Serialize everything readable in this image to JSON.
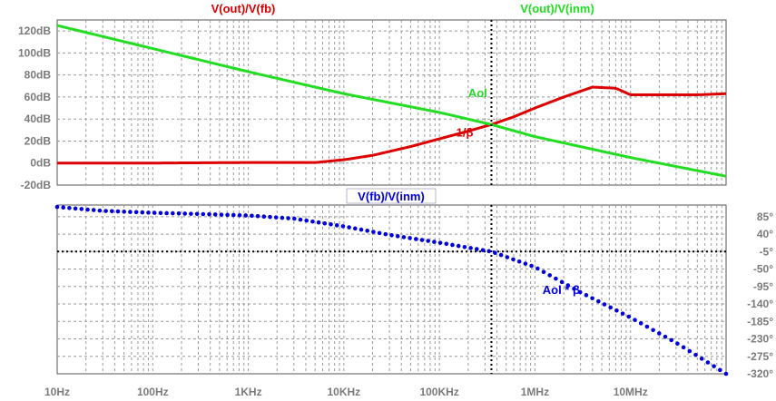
{
  "colors": {
    "aol": "#22dd22",
    "inv_beta": "#dd0000",
    "loop_gain": "#0000dd",
    "cursor": "#000000",
    "grid": "#9a9a9a",
    "tick_text": "#7a7a7a"
  },
  "chart_data": [
    {
      "type": "line",
      "title_left": "V(out)/V(fb)",
      "title_right": "V(out)/V(inm)",
      "x_scale": "log",
      "x_range_hz": [
        10,
        100000000
      ],
      "y_range_db": [
        -20,
        130
      ],
      "y_ticks": [
        {
          "v": 120,
          "label": "120dB"
        },
        {
          "v": 100,
          "label": "100dB"
        },
        {
          "v": 80,
          "label": "80dB"
        },
        {
          "v": 60,
          "label": "60dB"
        },
        {
          "v": 40,
          "label": "40dB"
        },
        {
          "v": 20,
          "label": "20dB"
        },
        {
          "v": 0,
          "label": "0dB"
        },
        {
          "v": -20,
          "label": "-20dB"
        }
      ],
      "grid": true,
      "cursor_hz": 350000,
      "series": [
        {
          "name": "V(out)/V(fb)",
          "color_key": "inv_beta",
          "annotation": "1/β",
          "annotation_at": {
            "x": 150000,
            "y": 24
          },
          "points": [
            [
              10,
              0
            ],
            [
              100,
              0
            ],
            [
              1000,
              0.5
            ],
            [
              5000,
              0.5
            ],
            [
              10000,
              3
            ],
            [
              20000,
              7
            ],
            [
              50000,
              15
            ],
            [
              100000,
              22
            ],
            [
              200000,
              29
            ],
            [
              350000,
              35
            ],
            [
              600000,
              42
            ],
            [
              1000000,
              50
            ],
            [
              2000000,
              60
            ],
            [
              4000000,
              69
            ],
            [
              7000000,
              68
            ],
            [
              10000000,
              62
            ],
            [
              20000000,
              62
            ],
            [
              50000000,
              62
            ],
            [
              100000000,
              63
            ]
          ]
        },
        {
          "name": "V(out)/V(inm)",
          "color_key": "aol",
          "annotation": "Aol",
          "annotation_at": {
            "x": 200000,
            "y": 60
          },
          "points": [
            [
              10,
              125
            ],
            [
              100,
              104
            ],
            [
              1000,
              83
            ],
            [
              10000,
              63
            ],
            [
              100000,
              46
            ],
            [
              350000,
              35
            ],
            [
              1000000,
              24
            ],
            [
              10000000,
              5
            ],
            [
              100000000,
              -12
            ]
          ]
        }
      ]
    },
    {
      "type": "scatter",
      "title": "V(fb)/V(inm)",
      "x_scale": "log",
      "x_range_hz": [
        10,
        100000000
      ],
      "y_range_deg": [
        -320,
        115
      ],
      "y_ticks": [
        {
          "v": 85,
          "label": "85°"
        },
        {
          "v": 40,
          "label": "40°"
        },
        {
          "v": -5,
          "label": "-5°"
        },
        {
          "v": -50,
          "label": "-50°"
        },
        {
          "v": -95,
          "label": "-95°"
        },
        {
          "v": -140,
          "label": "-140°"
        },
        {
          "v": -185,
          "label": "-185°"
        },
        {
          "v": -230,
          "label": "-230°"
        },
        {
          "v": -275,
          "label": "-275°"
        },
        {
          "v": -320,
          "label": "-320°"
        }
      ],
      "grid": true,
      "cursor_hz": 350000,
      "cursor_deg": -5,
      "series": [
        {
          "name": "V(fb)/V(inm)",
          "color_key": "loop_gain",
          "annotation": "Aol * β",
          "annotation_at": {
            "x": 1200000,
            "y": -95
          },
          "points": [
            [
              10,
              110
            ],
            [
              30,
              100
            ],
            [
              100,
              95
            ],
            [
              300,
              92
            ],
            [
              1000,
              88
            ],
            [
              3000,
              80
            ],
            [
              10000,
              60
            ],
            [
              30000,
              38
            ],
            [
              100000,
              18
            ],
            [
              350000,
              -5
            ],
            [
              1000000,
              -45
            ],
            [
              3000000,
              -110
            ],
            [
              10000000,
              -175
            ],
            [
              30000000,
              -240
            ],
            [
              100000000,
              -320
            ]
          ]
        }
      ]
    }
  ],
  "x_ticks": [
    {
      "v": 10,
      "label": "10Hz"
    },
    {
      "v": 100,
      "label": "100Hz"
    },
    {
      "v": 1000,
      "label": "1KHz"
    },
    {
      "v": 10000,
      "label": "10KHz"
    },
    {
      "v": 100000,
      "label": "100KHz"
    },
    {
      "v": 1000000,
      "label": "1MHz"
    },
    {
      "v": 10000000,
      "label": "10MHz"
    }
  ]
}
